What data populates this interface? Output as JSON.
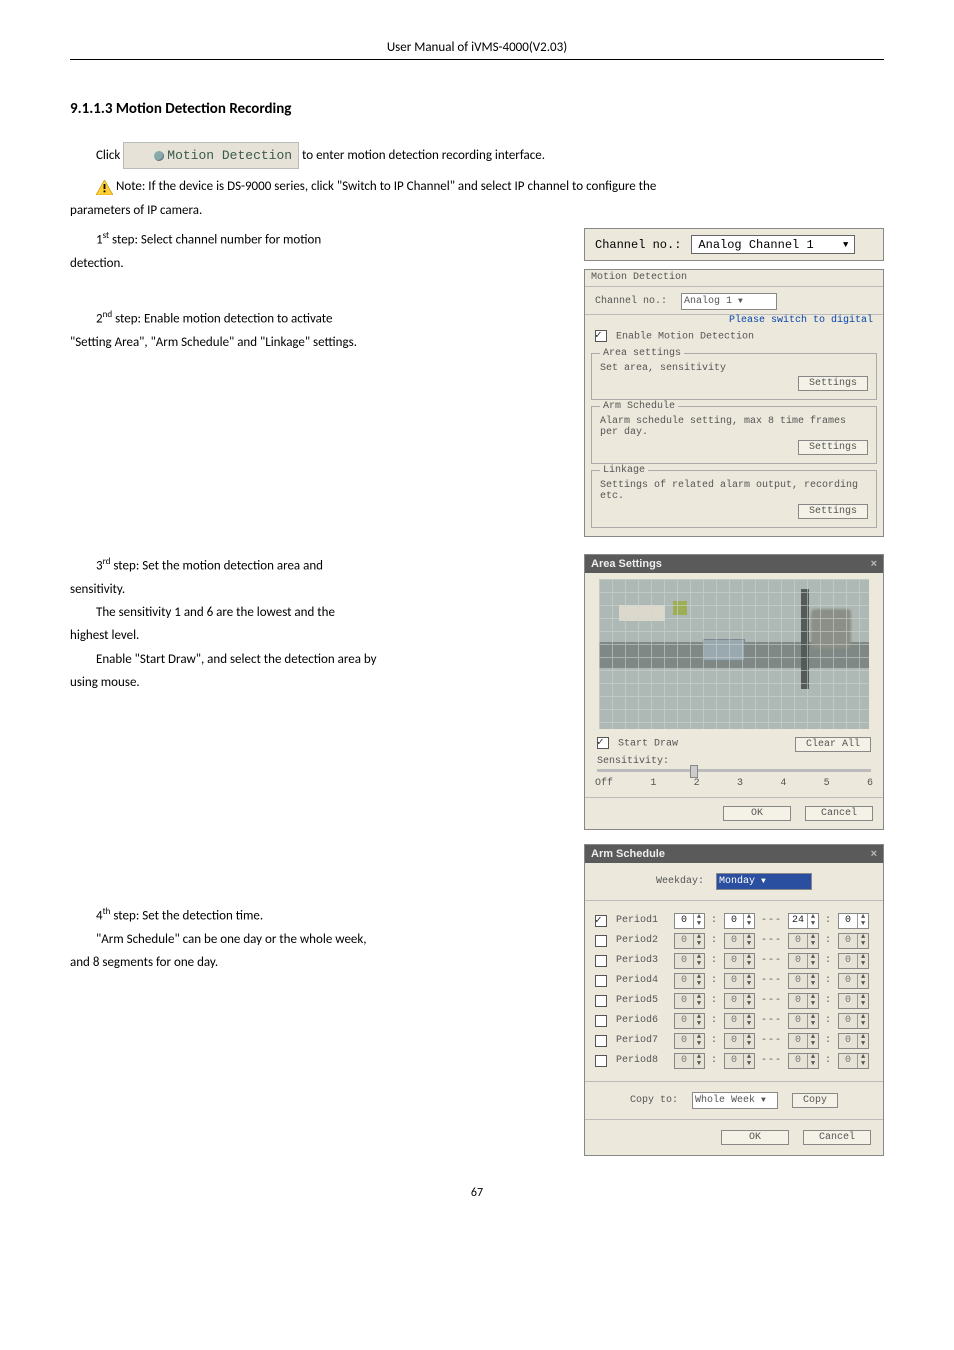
{
  "doc": {
    "header": "User Manual of iVMS-4000(V2.03)",
    "page_number": "67",
    "section_heading": "9.1.1.3 Motion Detection Recording",
    "para_click_prefix": "Click",
    "motion_detection_button_label": "Motion Detection",
    "para_click_suffix": "to enter motion detection recording interface.",
    "note_text": "Note: If the device is DS-9000 series, click \"Switch to IP Channel\" and select IP channel to configure the",
    "note_text2": "parameters of IP camera.",
    "step1_a": "1",
    "step1_sup": "st",
    "step1_b": " step: Select channel number for motion",
    "step1_c": "detection.",
    "step2_a": "2",
    "step2_sup": "nd",
    "step2_b": " step: Enable motion detection to activate",
    "step2_c": "\"Setting Area\", \"Arm Schedule\" and \"Linkage\" settings.",
    "step3_a": "3",
    "step3_sup": "rd",
    "step3_b": " step: Set the motion detection area and",
    "step3_c": "sensitivity.",
    "step3_d": "The sensitivity 1 and 6 are the lowest and the",
    "step3_e": "highest level.",
    "step3_f": "Enable \"Start Draw\", and select the detection area by",
    "step3_g": "using mouse.",
    "step4_a": "4",
    "step4_sup": "th",
    "step4_b": " step: Set the detection time.",
    "step4_c": "\"Arm Schedule\" can be one day or the whole week,",
    "step4_d": "and 8 segments for one day."
  },
  "chanbar": {
    "label": "Channel no.:",
    "value": "Analog Channel 1"
  },
  "md_panel": {
    "title": "Motion Detection",
    "chan_label": "Channel no.:",
    "chan_value": "Analog 1",
    "switch_link": "Please switch to digital",
    "enable_label": "Enable Motion Detection",
    "area_group": "Area settings",
    "area_desc": "Set area, sensitivity",
    "arm_group": "Arm Schedule",
    "arm_desc": "Alarm schedule setting, max 8 time frames per day.",
    "linkage_group": "Linkage",
    "linkage_desc": "Settings of related alarm output, recording etc.",
    "btn_settings": "Settings"
  },
  "area_panel": {
    "title": "Area Settings",
    "start_draw": "Start Draw",
    "clear_all": "Clear All",
    "sens_label": "Sensitivity:",
    "scale": [
      "Off",
      "1",
      "2",
      "3",
      "4",
      "5",
      "6"
    ],
    "ok": "OK",
    "cancel": "Cancel"
  },
  "arm_panel": {
    "title": "Arm Schedule",
    "weekday_label": "Weekday:",
    "weekday_value": "Monday",
    "periods": [
      {
        "label": "Period1",
        "checked": true,
        "vals": [
          "0",
          "0",
          "24",
          "0"
        ],
        "active": true
      },
      {
        "label": "Period2",
        "checked": false,
        "vals": [
          "0",
          "0",
          "0",
          "0"
        ],
        "active": false
      },
      {
        "label": "Period3",
        "checked": false,
        "vals": [
          "0",
          "0",
          "0",
          "0"
        ],
        "active": false
      },
      {
        "label": "Period4",
        "checked": false,
        "vals": [
          "0",
          "0",
          "0",
          "0"
        ],
        "active": false
      },
      {
        "label": "Period5",
        "checked": false,
        "vals": [
          "0",
          "0",
          "0",
          "0"
        ],
        "active": false
      },
      {
        "label": "Period6",
        "checked": false,
        "vals": [
          "0",
          "0",
          "0",
          "0"
        ],
        "active": false
      },
      {
        "label": "Period7",
        "checked": false,
        "vals": [
          "0",
          "0",
          "0",
          "0"
        ],
        "active": false
      },
      {
        "label": "Period8",
        "checked": false,
        "vals": [
          "0",
          "0",
          "0",
          "0"
        ],
        "active": false
      }
    ],
    "copy_to_label": "Copy to:",
    "copy_to_value": "Whole Week",
    "copy_btn": "Copy",
    "ok": "OK",
    "cancel": "Cancel"
  }
}
